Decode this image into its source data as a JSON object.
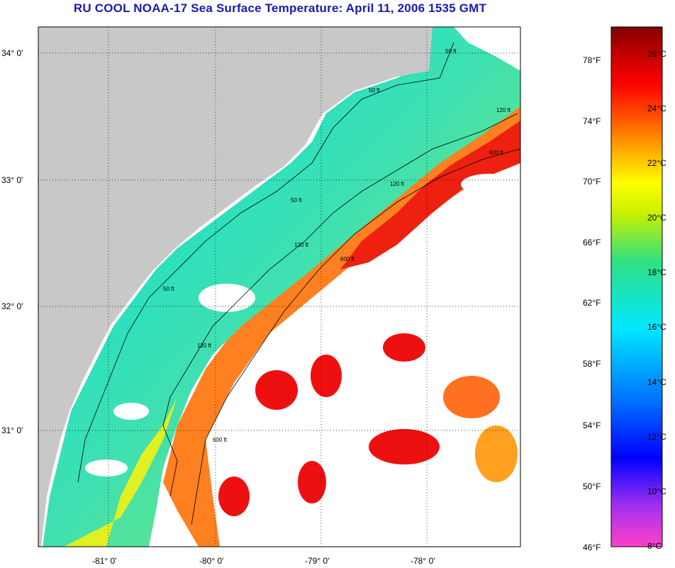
{
  "title": "RU COOL  NOAA-17  Sea Surface Temperature:  April 11, 2006 1535 GMT",
  "map": {
    "lat_ticks": [
      "34° 0'",
      "33° 0'",
      "32° 0'",
      "31° 0'"
    ],
    "lon_ticks": [
      "-81° 0'",
      "-80° 0'",
      "-79° 0'",
      "-78° 0'"
    ],
    "colors": {
      "land": "#c8c8c8",
      "cloud": "#ffffff",
      "contour": "#000000",
      "grid": "#000000"
    },
    "contour_labels": [
      "50 ft",
      "120 ft",
      "600 ft",
      "50 ft",
      "120 ft",
      "600 ft",
      "50 ft",
      "120 ft",
      "600 ft",
      "50 ft",
      "120 ft"
    ]
  },
  "colorbar": {
    "fahrenheit_labels": [
      "78°F",
      "74°F",
      "70°F",
      "66°F",
      "62°F",
      "58°F",
      "54°F",
      "50°F",
      "46°F"
    ],
    "celsius_labels": [
      "26°C",
      "24°C",
      "22°C",
      "20°C",
      "18°C",
      "16°C",
      "14°C",
      "12°C",
      "10°C",
      "8°C"
    ],
    "gradient": [
      "#ff40c8",
      "#a030f0",
      "#0000ff",
      "#0070ff",
      "#00e8ff",
      "#30e080",
      "#c8f000",
      "#ffff00",
      "#ffa000",
      "#ff4000",
      "#ff0000",
      "#c00000",
      "#800000"
    ]
  }
}
